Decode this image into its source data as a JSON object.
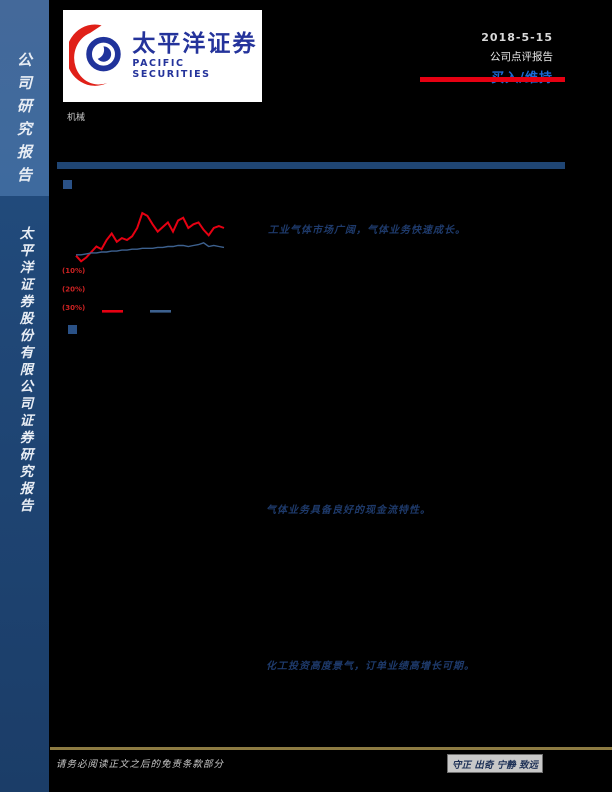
{
  "sidebar": {
    "top_label": "公司研究报告",
    "bottom_label": "太平洋证券股份有限公司证券研究报告",
    "top_bg": "#44699a",
    "bottom_bg": "#214a7b"
  },
  "header": {
    "logo_cn": "太平洋证券",
    "logo_en": "PACIFIC SECURITIES",
    "industry": "机械",
    "date": "2018-5-15",
    "report_type": "公司点评报告",
    "rating": "买入/维持",
    "rating_color": "#1c69d4",
    "accent_red": "#e60012"
  },
  "chart_data": {
    "type": "line",
    "title": "",
    "xlabel": "",
    "ylabel": "",
    "ylim": [
      -32,
      24
    ],
    "grid": false,
    "legend_position": "bottom",
    "y_ticks_visible": [
      "(10%)",
      "(20%)",
      "(30%)"
    ],
    "y_tick_values": [
      -10,
      -20,
      -30
    ],
    "y_tick_color": "#cc2222",
    "series": [
      {
        "color": "#e60012",
        "values": [
          -2,
          -5,
          -3,
          0,
          3,
          1.5,
          6.5,
          10,
          5.5,
          7.5,
          6.5,
          8.5,
          13,
          21,
          19.5,
          15,
          11,
          13.5,
          16,
          11,
          17,
          18.5,
          13,
          15,
          16,
          12,
          9,
          13,
          14,
          13
        ]
      },
      {
        "color": "#3d618f",
        "values": [
          -1.5,
          -1.5,
          -1,
          -0.5,
          -0.5,
          0,
          0,
          0.5,
          0.5,
          1,
          1,
          1.5,
          1.5,
          2,
          2,
          2,
          2.5,
          2.5,
          3,
          3,
          3.5,
          3.5,
          3,
          3.5,
          4,
          5,
          3,
          3.5,
          3,
          2.5
        ]
      }
    ]
  },
  "highlights": [
    {
      "text": "工业气体市场广阔，气体业务快速成长。"
    },
    {
      "text": "气体业务具备良好的现金流特性。"
    },
    {
      "text": "化工投资高度景气，订单业绩高增长可期。"
    }
  ],
  "footer": {
    "disclaimer": "请务必阅读正文之后的免责条款部分",
    "motto": "守正 出奇 宁静 致远",
    "rule_color": "#8d7b42"
  }
}
